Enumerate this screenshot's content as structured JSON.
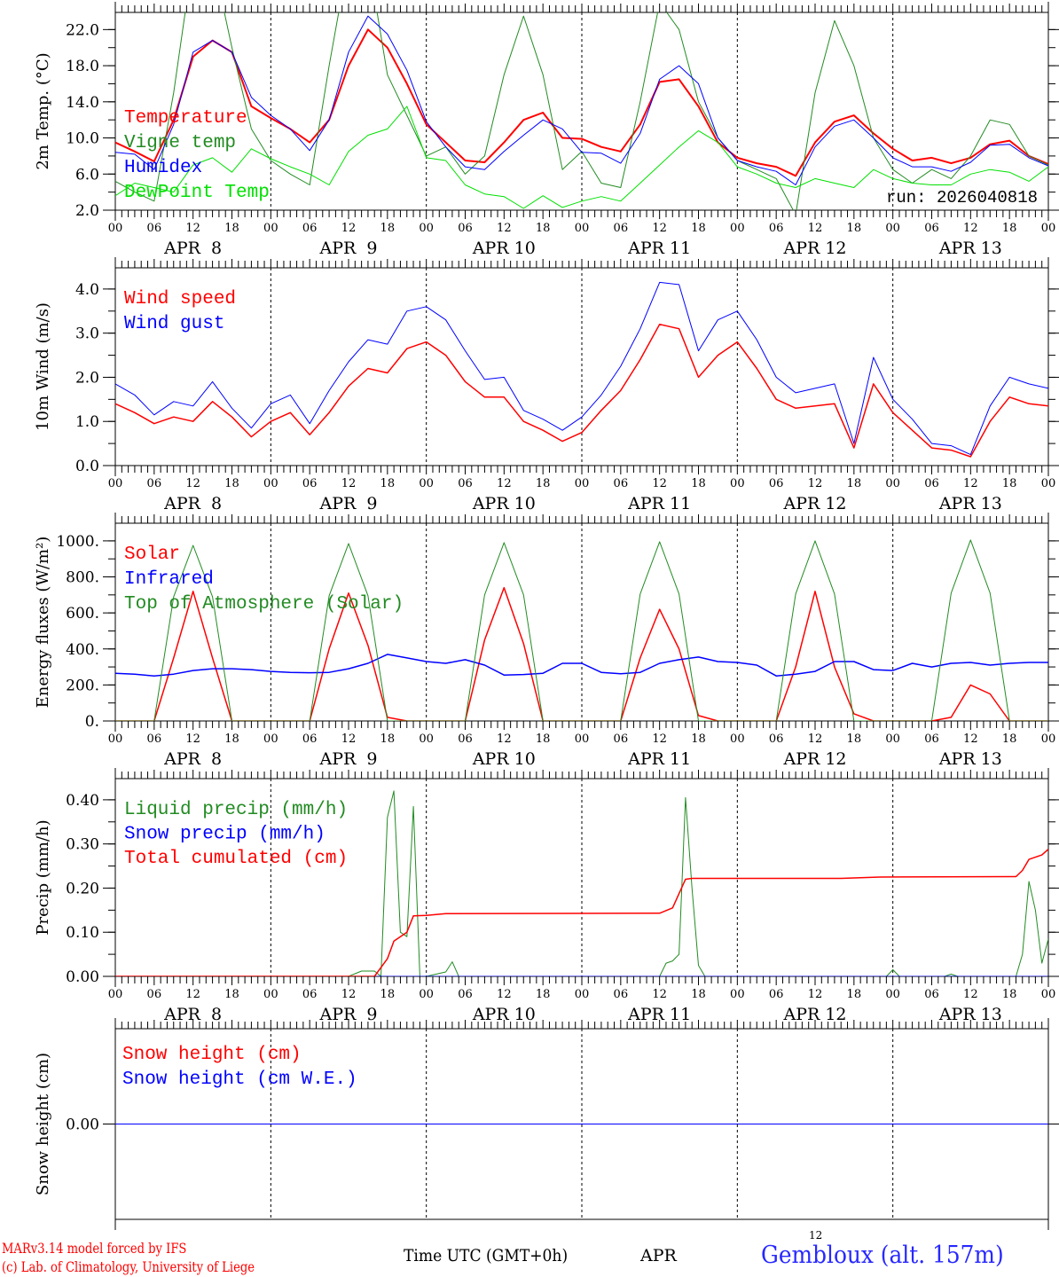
{
  "footer": {
    "model": "MARv3.14 model forced by IFS",
    "credit": "(c) Lab. of Climatology, University of Liege",
    "time_label": "Time UTC (GMT+0h)",
    "month": "APR",
    "day_marker": "12",
    "station": "Gembloux (alt. 157m)"
  },
  "colors": {
    "red": "#ff0000",
    "blue": "#0000ff",
    "green": "#228b22",
    "lightgreen": "#00e000"
  },
  "chart_data": [
    {
      "type": "line",
      "ylabel": "2m Temp. (°C)",
      "ylim": [
        2,
        23.9
      ],
      "yticks": [
        {
          "v": 2,
          "l": "2.0"
        },
        {
          "v": 6,
          "l": "6.0"
        },
        {
          "v": 10,
          "l": "10.0"
        },
        {
          "v": 14,
          "l": "14.0"
        },
        {
          "v": 18,
          "l": "18.0"
        },
        {
          "v": 22,
          "l": "22.0"
        }
      ],
      "yminor": 2,
      "annotation": "run: 2026040818",
      "x_hours_step": 3,
      "series": [
        {
          "name": "Temperature",
          "color": "#ff0000",
          "width": 2,
          "values": [
            9.5,
            8.5,
            7.4,
            12,
            19,
            20.8,
            19.5,
            13.5,
            12.2,
            11,
            9.5,
            12,
            18,
            22,
            20,
            16,
            11.5,
            9.5,
            7.5,
            7.3,
            9.5,
            12,
            12.8,
            10,
            9.9,
            9,
            8.5,
            11.5,
            16.2,
            16.5,
            13.5,
            9.5,
            7.8,
            7.2,
            6.8,
            5.8,
            9.5,
            11.8,
            12.5,
            10.5,
            8.8,
            7.5,
            7.8,
            7.2,
            7.8,
            9.3,
            9.7,
            8.0,
            7.1
          ]
        },
        {
          "name": "Vigne temp",
          "color": "#228b22",
          "width": 1,
          "values": [
            5.2,
            4,
            3,
            15,
            30,
            30,
            20,
            11,
            7.5,
            6,
            4.8,
            18,
            30,
            30,
            17,
            12.5,
            8,
            9,
            6,
            8,
            17,
            23.5,
            17,
            6.5,
            8.5,
            5,
            4.5,
            14,
            25,
            22,
            14,
            10,
            7.5,
            6.5,
            5.5,
            1.5,
            15,
            23,
            18,
            10,
            6.5,
            5,
            6.5,
            5.5,
            8,
            12,
            11.5,
            8,
            7
          ]
        },
        {
          "name": "Humidex",
          "color": "#0000ff",
          "width": 1,
          "values": [
            8.4,
            8.2,
            6.5,
            11.5,
            19.5,
            20.8,
            19.5,
            14.5,
            12.5,
            11,
            8.6,
            12,
            19.5,
            23.5,
            21.5,
            17.5,
            11.8,
            9,
            6.8,
            6.5,
            8.5,
            10.3,
            12,
            11,
            8.4,
            8.3,
            7.2,
            10.5,
            16.5,
            18,
            16,
            10,
            7.5,
            6.8,
            6.3,
            4.8,
            9,
            11.3,
            12.0,
            10,
            7.8,
            6.8,
            6.8,
            6.3,
            7.3,
            9.2,
            9.3,
            7.8,
            6.9
          ]
        },
        {
          "name": "DewPoint Temp",
          "color": "#00e000",
          "width": 1,
          "values": [
            3.6,
            5,
            4.5,
            4,
            7,
            7.8,
            6.2,
            8.8,
            7.7,
            6.8,
            6,
            4.8,
            8.5,
            10.3,
            11,
            13.5,
            7.8,
            7.5,
            4.8,
            3.8,
            3.5,
            2.2,
            3.6,
            2.3,
            3,
            3.5,
            3,
            5,
            7,
            9,
            10.8,
            9.5,
            6.8,
            6,
            5,
            4.5,
            5.5,
            5,
            4.5,
            6.5,
            5.5,
            5,
            4.8,
            4.8,
            6,
            6.5,
            6.2,
            5.2,
            6.8
          ]
        }
      ]
    },
    {
      "type": "line",
      "ylabel": "10m Wind (m/s)",
      "ylim": [
        0,
        4.48
      ],
      "yticks": [
        {
          "v": 0,
          "l": "0.0"
        },
        {
          "v": 1,
          "l": "1.0"
        },
        {
          "v": 2,
          "l": "2.0"
        },
        {
          "v": 3,
          "l": "3.0"
        },
        {
          "v": 4,
          "l": "4.0"
        }
      ],
      "yminor": 0.5,
      "x_hours_step": 3,
      "series": [
        {
          "name": "Wind speed",
          "color": "#ff0000",
          "width": 1.5,
          "values": [
            1.4,
            1.2,
            0.95,
            1.1,
            1.0,
            1.45,
            1.1,
            0.65,
            1.0,
            1.2,
            0.7,
            1.2,
            1.8,
            2.2,
            2.1,
            2.65,
            2.8,
            2.5,
            1.9,
            1.55,
            1.55,
            1.0,
            0.8,
            0.55,
            0.75,
            1.25,
            1.7,
            2.4,
            3.2,
            3.1,
            2.0,
            2.5,
            2.8,
            2.2,
            1.5,
            1.3,
            1.35,
            1.4,
            0.4,
            1.85,
            1.2,
            0.8,
            0.4,
            0.35,
            0.2,
            1.0,
            1.55,
            1.4,
            1.35
          ]
        },
        {
          "name": "Wind gust",
          "color": "#0000ff",
          "width": 1,
          "values": [
            1.85,
            1.6,
            1.15,
            1.45,
            1.35,
            1.9,
            1.3,
            0.85,
            1.4,
            1.6,
            0.95,
            1.7,
            2.35,
            2.85,
            2.75,
            3.5,
            3.6,
            3.3,
            2.6,
            1.95,
            2.0,
            1.25,
            1.05,
            0.8,
            1.1,
            1.6,
            2.25,
            3.1,
            4.15,
            4.1,
            2.6,
            3.3,
            3.5,
            2.85,
            2.0,
            1.65,
            1.75,
            1.85,
            0.5,
            2.45,
            1.5,
            1.05,
            0.5,
            0.45,
            0.25,
            1.35,
            2.0,
            1.85,
            1.75
          ]
        }
      ]
    },
    {
      "type": "line",
      "ylabel": "Energy fluxes (W/m²)",
      "ylim": [
        0,
        1098
      ],
      "yticks": [
        {
          "v": 0,
          "l": "0."
        },
        {
          "v": 200,
          "l": "200."
        },
        {
          "v": 400,
          "l": "400."
        },
        {
          "v": 600,
          "l": "600."
        },
        {
          "v": 800,
          "l": "800."
        },
        {
          "v": 1000,
          "l": "1000."
        }
      ],
      "yminor": 100,
      "x_hours_step": 3,
      "series": [
        {
          "name": "Solar",
          "color": "#ff0000",
          "width": 1.5,
          "values": [
            0,
            0,
            0,
            350,
            720,
            350,
            0,
            0,
            0,
            0,
            0,
            400,
            710,
            420,
            20,
            0,
            0,
            0,
            0,
            450,
            740,
            430,
            0,
            0,
            0,
            0,
            0,
            350,
            620,
            400,
            30,
            0,
            0,
            0,
            0,
            300,
            720,
            300,
            40,
            0,
            0,
            0,
            0,
            20,
            200,
            150,
            0,
            0,
            0
          ]
        },
        {
          "name": "Infrared",
          "color": "#0000ff",
          "width": 1.5,
          "values": [
            265,
            260,
            250,
            260,
            280,
            290,
            290,
            285,
            275,
            270,
            268,
            270,
            290,
            320,
            370,
            350,
            330,
            320,
            340,
            310,
            255,
            258,
            265,
            320,
            320,
            270,
            262,
            270,
            320,
            340,
            355,
            330,
            325,
            310,
            250,
            260,
            275,
            330,
            330,
            285,
            280,
            320,
            300,
            320,
            325,
            310,
            320,
            325,
            325
          ]
        },
        {
          "name": "Top of Atmosphere (Solar)",
          "color": "#228b22",
          "width": 1,
          "values": [
            0,
            0,
            0,
            690,
            975,
            690,
            0,
            0,
            0,
            0,
            0,
            695,
            985,
            695,
            0,
            0,
            0,
            0,
            0,
            700,
            990,
            700,
            0,
            0,
            0,
            0,
            0,
            705,
            995,
            705,
            0,
            0,
            0,
            0,
            0,
            705,
            1000,
            705,
            0,
            0,
            0,
            0,
            0,
            710,
            1005,
            710,
            0,
            0,
            0
          ]
        }
      ]
    },
    {
      "type": "line",
      "ylabel": "Precip (mm/h)",
      "ylim": [
        0,
        0.448
      ],
      "yticks": [
        {
          "v": 0,
          "l": "0.00"
        },
        {
          "v": 0.1,
          "l": "0.10"
        },
        {
          "v": 0.2,
          "l": "0.20"
        },
        {
          "v": 0.3,
          "l": "0.30"
        },
        {
          "v": 0.4,
          "l": "0.40"
        }
      ],
      "yminor": 0.05,
      "series": [
        {
          "name": "Liquid precip (mm/h)",
          "color": "#228b22",
          "width": 1,
          "x": [
            0,
            36,
            38,
            40,
            41,
            42,
            43,
            44,
            45,
            46,
            47,
            48,
            51,
            52,
            53,
            84,
            85,
            86,
            87,
            88,
            89,
            90,
            91,
            119,
            120,
            121,
            128,
            129,
            130,
            139,
            140,
            141,
            142,
            143,
            144
          ],
          "values": [
            0,
            0,
            0.012,
            0.012,
            0,
            0.36,
            0.42,
            0.1,
            0.09,
            0.385,
            0,
            0,
            0.01,
            0.033,
            0,
            0,
            0.03,
            0.035,
            0.05,
            0.405,
            0.2,
            0.025,
            0,
            0,
            0.015,
            0,
            0,
            0.005,
            0,
            0,
            0.05,
            0.215,
            0.15,
            0.03,
            0.085
          ]
        },
        {
          "name": "Snow precip (mm/h)",
          "color": "#0000ff",
          "width": 1,
          "x": [
            0,
            144
          ],
          "values": [
            0,
            0
          ]
        },
        {
          "name": "Total cumulated (cm)",
          "color": "#ff0000",
          "width": 1.5,
          "x": [
            0,
            40,
            42,
            43,
            45,
            46,
            48,
            51,
            84,
            86,
            88,
            89,
            112,
            118,
            139,
            140,
            141,
            143,
            144
          ],
          "values": [
            0,
            0,
            0.04,
            0.08,
            0.1,
            0.137,
            0.138,
            0.142,
            0.143,
            0.155,
            0.22,
            0.222,
            0.222,
            0.225,
            0.226,
            0.24,
            0.265,
            0.275,
            0.288
          ]
        }
      ]
    },
    {
      "type": "line",
      "ylabel": "Snow height (cm)",
      "ylim": [
        -1,
        1
      ],
      "yticks": [
        {
          "v": 0,
          "l": "0.00"
        }
      ],
      "no_xlabels": true,
      "series": [
        {
          "name": "Snow height (cm)",
          "color": "#ff0000",
          "width": 1,
          "x": [
            0,
            144
          ],
          "values": [
            0,
            0
          ]
        },
        {
          "name": "Snow height (cm W.E.)",
          "color": "#0000ff",
          "width": 1,
          "x": [
            0,
            144
          ],
          "values": [
            0,
            0
          ],
          "hidden_legend_color": false
        }
      ]
    }
  ],
  "x_axis": {
    "hour_labels": [
      "00",
      "06",
      "12",
      "18"
    ],
    "end_label": "00",
    "day_labels": [
      "APR  8",
      "APR  9",
      "APR 10",
      "APR 11",
      "APR 12",
      "APR 13"
    ],
    "xlim_hours": [
      0,
      144
    ]
  }
}
